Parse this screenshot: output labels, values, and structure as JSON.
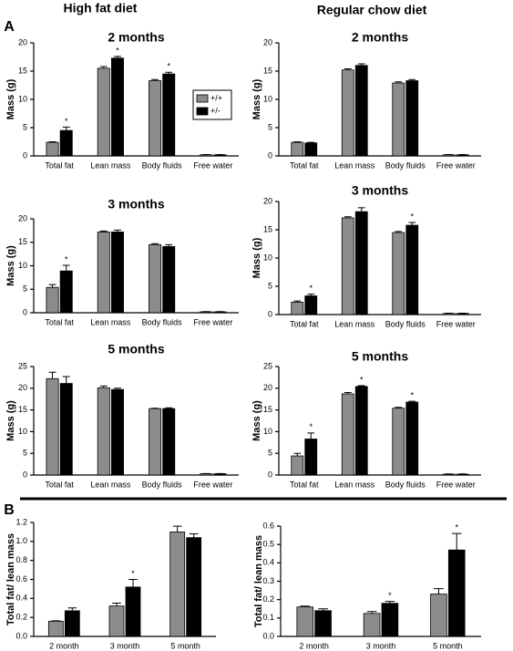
{
  "headers": [
    "High fat diet",
    "Regular chow diet"
  ],
  "panel_labels": [
    "A",
    "B"
  ],
  "chart_data": [
    {
      "type": "bar",
      "title": "2 months",
      "ylabel": "Mass (g)",
      "categories": [
        "Total fat",
        "Lean mass",
        "Body fluids",
        "Free water"
      ],
      "ylim": [
        0,
        20
      ],
      "yticks": [
        0,
        5,
        10,
        15,
        20
      ],
      "legend": "center right",
      "series": [
        {
          "name": "+/+",
          "color": "#8c8c8c",
          "values": [
            2.4,
            15.5,
            13.3,
            0.2
          ],
          "errors": [
            0.1,
            0.3,
            0.2,
            0.05
          ],
          "annotations": [
            null,
            null,
            null,
            null
          ]
        },
        {
          "name": "+/-",
          "color": "#000000",
          "values": [
            4.5,
            17.3,
            14.5,
            0.2
          ],
          "errors": [
            0.6,
            0.3,
            0.3,
            0.05
          ],
          "annotations": [
            "*",
            "*",
            "*",
            null
          ]
        }
      ]
    },
    {
      "type": "bar",
      "title": "2 months",
      "ylabel": "Mass (g)",
      "categories": [
        "Total fat",
        "Lean mass",
        "Body fluids",
        "Free water"
      ],
      "ylim": [
        0,
        20
      ],
      "yticks": [
        0,
        5,
        10,
        15,
        20
      ],
      "series": [
        {
          "name": "+/+",
          "color": "#8c8c8c",
          "values": [
            2.4,
            15.2,
            12.9,
            0.2
          ],
          "errors": [
            0.1,
            0.2,
            0.2,
            0.05
          ],
          "annotations": [
            null,
            null,
            null,
            null
          ]
        },
        {
          "name": "+/-",
          "color": "#000000",
          "values": [
            2.3,
            16.0,
            13.3,
            0.2
          ],
          "errors": [
            0.1,
            0.3,
            0.2,
            0.05
          ],
          "annotations": [
            null,
            null,
            null,
            null
          ]
        }
      ]
    },
    {
      "type": "bar",
      "title": "3 months",
      "ylabel": "Mass (g)",
      "categories": [
        "Total  fat",
        "Lean mass",
        "Body fluids",
        "Free water"
      ],
      "ylim": [
        0,
        20
      ],
      "yticks": [
        0,
        5,
        10,
        15,
        20
      ],
      "series": [
        {
          "name": "+/+",
          "color": "#8c8c8c",
          "values": [
            5.4,
            17.2,
            14.5,
            0.2
          ],
          "errors": [
            0.6,
            0.2,
            0.2,
            0.05
          ],
          "annotations": [
            null,
            null,
            null,
            null
          ]
        },
        {
          "name": "+/-",
          "color": "#000000",
          "values": [
            8.9,
            17.2,
            14.1,
            0.2
          ],
          "errors": [
            1.2,
            0.4,
            0.4,
            0.05
          ],
          "annotations": [
            "*",
            null,
            null,
            null
          ]
        }
      ]
    },
    {
      "type": "bar",
      "title": "3 months",
      "ylabel": "Mass (g)",
      "categories": [
        "Total fat",
        "Lean mass",
        "Body fluids",
        "Free  water"
      ],
      "ylim": [
        0,
        20
      ],
      "yticks": [
        0,
        5,
        10,
        15,
        20
      ],
      "series": [
        {
          "name": "+/+",
          "color": "#8c8c8c",
          "values": [
            2.2,
            17.1,
            14.5,
            0.2
          ],
          "errors": [
            0.2,
            0.2,
            0.2,
            0.05
          ],
          "annotations": [
            null,
            null,
            null,
            null
          ]
        },
        {
          "name": "+/-",
          "color": "#000000",
          "values": [
            3.3,
            18.2,
            15.8,
            0.2
          ],
          "errors": [
            0.3,
            0.7,
            0.5,
            0.05
          ],
          "annotations": [
            "*",
            null,
            "*",
            null
          ]
        }
      ]
    },
    {
      "type": "bar",
      "title": "5 months",
      "ylabel": "Mass (g)",
      "categories": [
        "Total fat",
        "Lean mass",
        "Body fluids",
        "Free water"
      ],
      "ylim": [
        0,
        25
      ],
      "yticks": [
        0,
        5,
        10,
        15,
        20,
        25
      ],
      "series": [
        {
          "name": "+/+",
          "color": "#8c8c8c",
          "values": [
            22.2,
            20.1,
            15.3,
            0.3
          ],
          "errors": [
            1.5,
            0.4,
            0.1,
            0.05
          ],
          "annotations": [
            null,
            null,
            null,
            null
          ]
        },
        {
          "name": "+/-",
          "color": "#000000",
          "values": [
            21.1,
            19.7,
            15.3,
            0.3
          ],
          "errors": [
            1.6,
            0.3,
            0.2,
            0.05
          ],
          "annotations": [
            null,
            null,
            null,
            null
          ]
        }
      ]
    },
    {
      "type": "bar",
      "title": "5 months",
      "ylabel": "Mass (g)",
      "categories": [
        "Total fat",
        "Lean mass",
        "Body fluids",
        "Free water"
      ],
      "ylim": [
        0,
        25
      ],
      "yticks": [
        0,
        5,
        10,
        15,
        20,
        25
      ],
      "series": [
        {
          "name": "+/+",
          "color": "#8c8c8c",
          "values": [
            4.4,
            18.7,
            15.4,
            0.2
          ],
          "errors": [
            0.6,
            0.3,
            0.2,
            0.05
          ],
          "annotations": [
            null,
            null,
            null,
            null
          ]
        },
        {
          "name": "+/-",
          "color": "#000000",
          "values": [
            8.3,
            20.4,
            16.8,
            0.2
          ],
          "errors": [
            1.4,
            0.2,
            0.2,
            0.05
          ],
          "annotations": [
            "*",
            "*",
            "*",
            null
          ]
        }
      ]
    },
    {
      "type": "bar",
      "ylabel": "Total fat/ lean mass",
      "categories": [
        "2 month",
        "3 month",
        "5 month"
      ],
      "ylim": [
        0,
        1.2
      ],
      "yticks": [
        {
          "value": 0,
          "label": "0.0"
        },
        0.2,
        0.4,
        0.6,
        0.8,
        {
          "value": 1,
          "label": "1.0"
        },
        1.2
      ],
      "series": [
        {
          "name": "+/+",
          "color": "#8c8c8c",
          "values": [
            0.16,
            0.32,
            1.1
          ],
          "errors": [
            0.005,
            0.03,
            0.06
          ],
          "annotations": [
            null,
            null,
            null
          ]
        },
        {
          "name": "+/-",
          "color": "#000000",
          "values": [
            0.27,
            0.52,
            1.04
          ],
          "errors": [
            0.03,
            0.08,
            0.04
          ],
          "annotations": [
            null,
            "*",
            null
          ]
        }
      ]
    },
    {
      "type": "bar",
      "ylabel": "Total fat/ lean mass",
      "categories": [
        "2 month",
        "3 month",
        "5 month"
      ],
      "ylim": [
        0,
        0.6
      ],
      "yticks": [
        {
          "value": 0,
          "label": "0.0"
        },
        0.1,
        0.2,
        0.3,
        0.4,
        0.5,
        0.6
      ],
      "series": [
        {
          "name": "+/+",
          "color": "#8c8c8c",
          "values": [
            0.16,
            0.125,
            0.23
          ],
          "errors": [
            0.005,
            0.01,
            0.03
          ],
          "annotations": [
            null,
            null,
            null
          ]
        },
        {
          "name": "+/-",
          "color": "#000000",
          "values": [
            0.14,
            0.18,
            0.47
          ],
          "errors": [
            0.01,
            0.01,
            0.09
          ],
          "annotations": [
            null,
            "*",
            "*"
          ]
        }
      ]
    }
  ]
}
